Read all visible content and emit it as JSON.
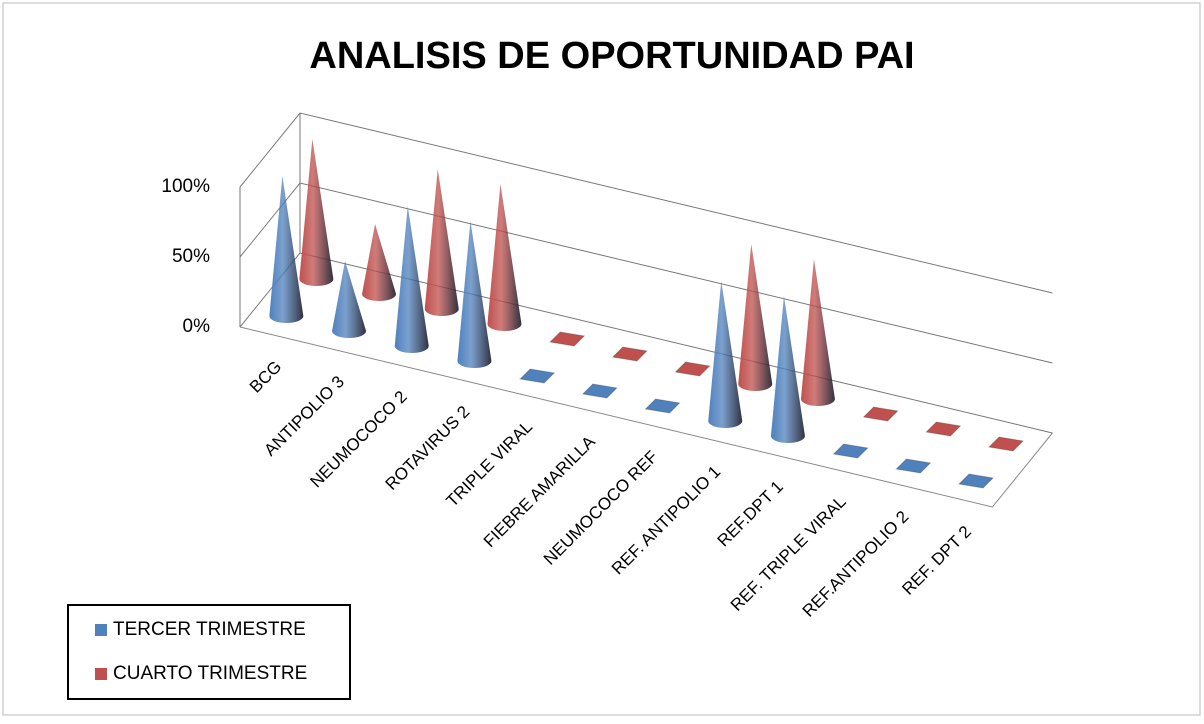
{
  "chart_data": {
    "type": "cone3d",
    "title": "ANALISIS DE OPORTUNIDAD PAI",
    "categories": [
      "BCG",
      "ANTIPOLIO 3",
      "NEUMOCOCO 2",
      "ROTAVIRUS 2",
      "TRIPLE VIRAL",
      "FIEBRE AMARILLA",
      "NEUMOCOCO REF",
      "REF. ANTIPOLIO 1",
      "REF.DPT 1",
      "REF. TRIPLE VIRAL",
      "REF.ANTIPOLIO 2",
      "REF. DPT 2"
    ],
    "series": [
      {
        "name": "TERCER TRIMESTRE",
        "color": "#4f81bd",
        "values": [
          100,
          50,
          100,
          100,
          0,
          0,
          0,
          100,
          100,
          0,
          0,
          0
        ]
      },
      {
        "name": "CUARTO TRIMESTRE",
        "color": "#c0504d",
        "values": [
          100,
          50,
          100,
          100,
          0,
          0,
          0,
          100,
          100,
          0,
          0,
          0
        ]
      }
    ],
    "ylim": [
      0,
      100
    ],
    "yticks": [
      {
        "value": 0,
        "label": "0%"
      },
      {
        "value": 50,
        "label": "50%"
      },
      {
        "value": 100,
        "label": "100%"
      }
    ],
    "grid": true,
    "legend": "bottom-left"
  }
}
